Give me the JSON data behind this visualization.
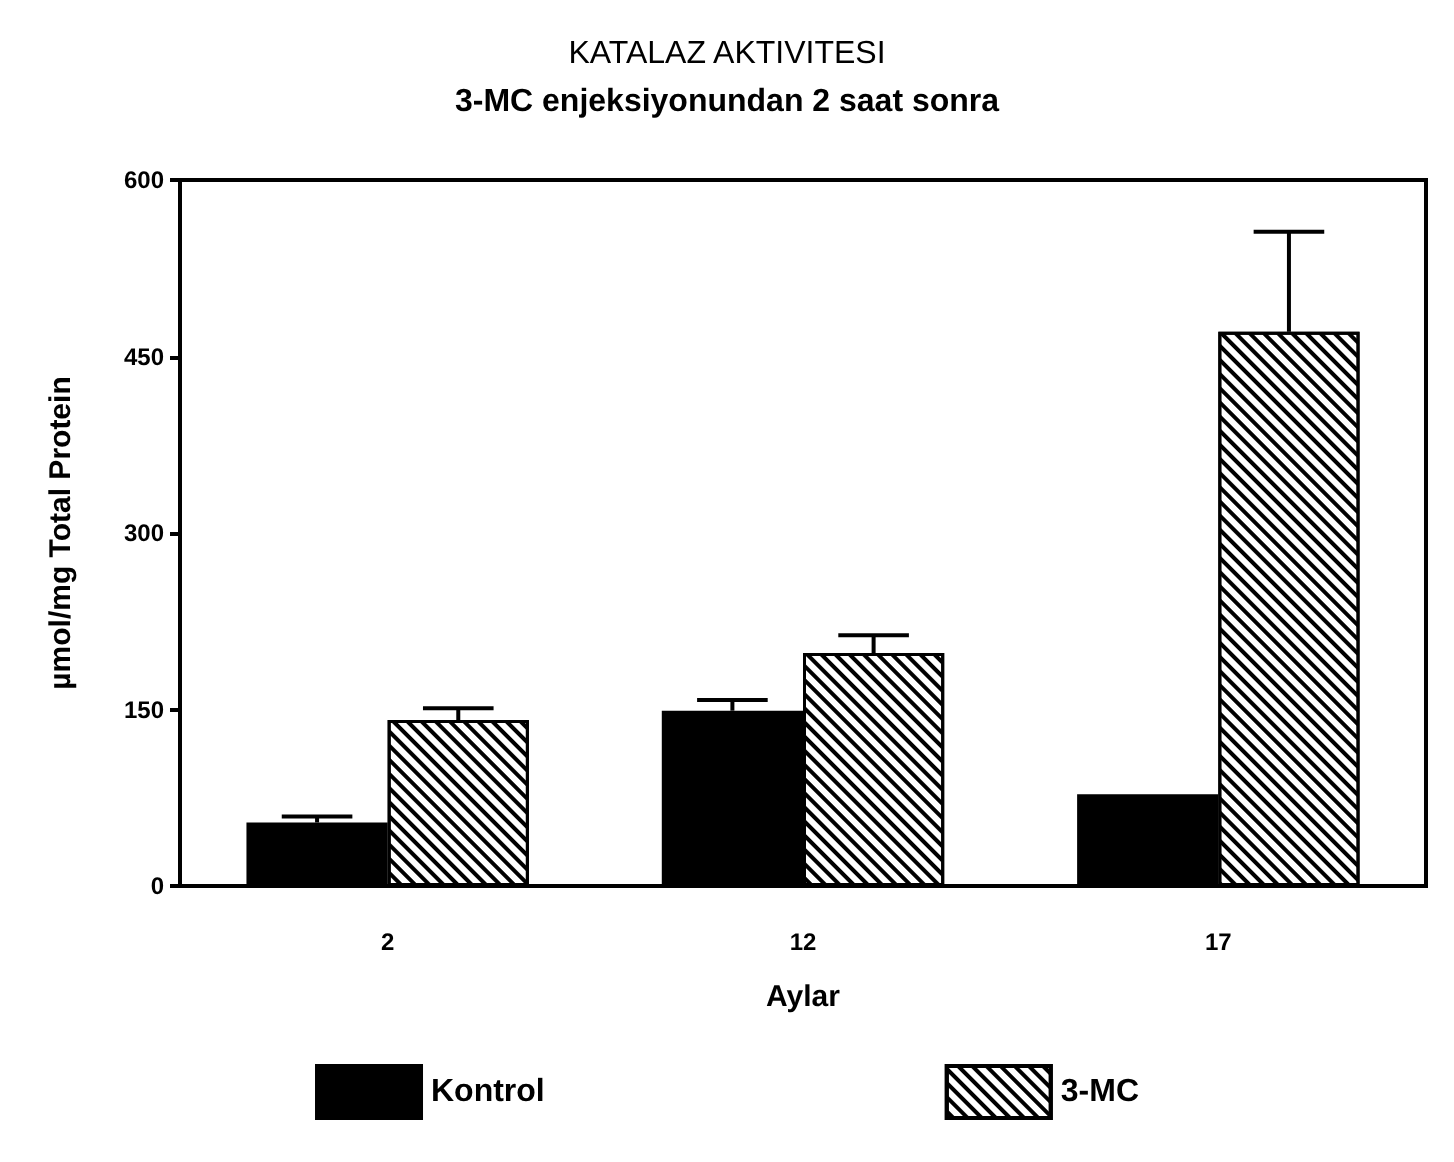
{
  "chart_data": {
    "type": "bar",
    "title": "KATALAZ AKTIVITESI",
    "subtitle": "3-MC enjeksiyonundan 2 saat sonra",
    "xlabel": "Aylar",
    "ylabel": "µmol/mg Total Protein",
    "categories": [
      "2",
      "12",
      "17"
    ],
    "series": [
      {
        "name": "Kontrol",
        "color": "#000000",
        "values": [
          54,
          149,
          78
        ],
        "errors": [
          [
            54,
            59
          ],
          [
            149,
            158
          ],
          null
        ]
      },
      {
        "name": "3-MC",
        "color": "#000000",
        "values": [
          141,
          198,
          471
        ],
        "errors": [
          [
            141,
            151
          ],
          [
            198,
            213
          ],
          [
            471,
            556
          ]
        ]
      }
    ],
    "ylim": [
      0,
      600
    ],
    "yticks": [
      0,
      150,
      300,
      450,
      600
    ],
    "grid": false,
    "legend": "bottom"
  }
}
